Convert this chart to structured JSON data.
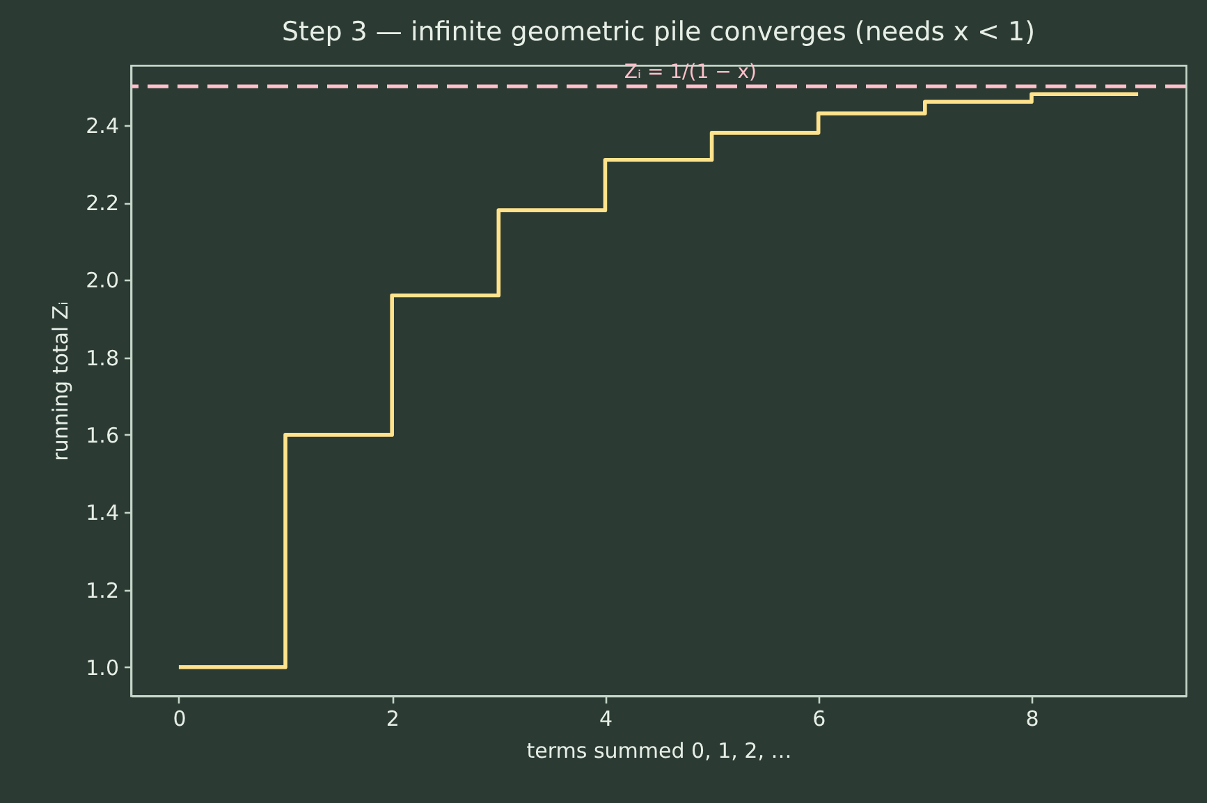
{
  "chart_data": {
    "type": "step",
    "title": "Step 3 — infinite geometric pile converges (needs x < 1)",
    "xlabel": "terms summed 0, 1, 2, …",
    "ylabel": "running total Zᵢ",
    "x": [
      0,
      1,
      2,
      3,
      4,
      5,
      6,
      7,
      8,
      9
    ],
    "series": [
      {
        "color": "#ffe28c",
        "values": [
          1.0,
          1.6,
          1.96,
          2.18,
          2.31,
          2.38,
          2.43,
          2.46,
          2.48,
          2.48
        ]
      }
    ],
    "xlim": [
      -0.45,
      9.45
    ],
    "ylim": [
      0.926,
      2.554
    ],
    "xticks": [
      0,
      2,
      4,
      6,
      8
    ],
    "yticks": [
      {
        "value": 1,
        "label": "1.0"
      },
      1.2,
      1.4,
      1.6,
      1.8,
      {
        "value": 2,
        "label": "2.0"
      },
      2.2,
      2.4
    ],
    "ref_lines": [
      {
        "axis": "y",
        "value": 2.5,
        "color": "#ffc0cb",
        "line_style": "dashed"
      }
    ],
    "annotations": [
      {
        "text": "Zᵢ = 1/(1 − x)",
        "x": 4.8,
        "y": 2.5
      }
    ]
  }
}
